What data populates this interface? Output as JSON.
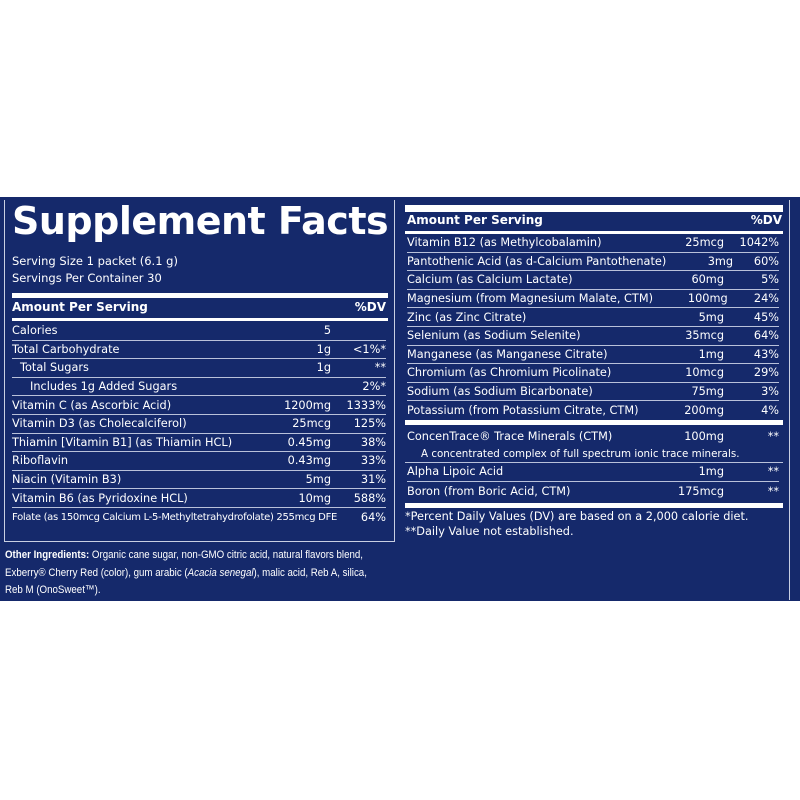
{
  "title": "Supplement Facts",
  "serving_size": "Serving Size 1 packet (6.1 g)",
  "servings_per_container": "Servings Per Container 30",
  "left": {
    "header_amount": "Amount Per Serving",
    "header_dv": "%DV",
    "rows": [
      {
        "name": "Calories",
        "amount": "5",
        "dv": ""
      },
      {
        "name": "Total Carbohydrate",
        "amount": "1g",
        "dv": "<1%*"
      },
      {
        "name": "Total Sugars",
        "amount": "1g",
        "dv": "**"
      },
      {
        "name": "Includes 1g Added Sugars",
        "amount": "",
        "dv": "2%*"
      },
      {
        "name": "Vitamin C (as Ascorbic Acid)",
        "amount": "1200mg",
        "dv": "1333%"
      },
      {
        "name": "Vitamin D3 (as Cholecalciferol)",
        "amount": "25mcg",
        "dv": "125%"
      },
      {
        "name": "Thiamin [Vitamin B1] (as Thiamin HCL)",
        "amount": "0.45mg",
        "dv": "38%"
      },
      {
        "name": "Riboflavin",
        "amount": "0.43mg",
        "dv": "33%"
      },
      {
        "name": "Niacin (Vitamin B3)",
        "amount": "5mg",
        "dv": "31%"
      },
      {
        "name": "Vitamin B6 (as Pyridoxine HCL)",
        "amount": "10mg",
        "dv": "588%"
      },
      {
        "name": "Folate (as 150mcg Calcium L-5-Methyltetrahydrofolate) 255mcg DFE",
        "amount": "",
        "dv": "64%"
      }
    ]
  },
  "right": {
    "header_amount": "Amount Per Serving",
    "header_dv": "%DV",
    "rows": [
      {
        "name": "Vitamin B12 (as Methylcobalamin)",
        "amount": "25mcg",
        "dv": "1042%"
      },
      {
        "name": "Pantothenic Acid (as d-Calcium Pantothenate)",
        "amount": "3mg",
        "dv": "60%"
      },
      {
        "name": "Calcium (as Calcium Lactate)",
        "amount": "60mg",
        "dv": "5%"
      },
      {
        "name": "Magnesium (from Magnesium Malate, CTM)",
        "amount": "100mg",
        "dv": "24%"
      },
      {
        "name": "Zinc (as Zinc Citrate)",
        "amount": "5mg",
        "dv": "45%"
      },
      {
        "name": "Selenium (as Sodium Selenite)",
        "amount": "35mcg",
        "dv": "64%"
      },
      {
        "name": "Manganese (as Manganese Citrate)",
        "amount": "1mg",
        "dv": "43%"
      },
      {
        "name": "Chromium (as Chromium Picolinate)",
        "amount": "10mcg",
        "dv": "29%"
      },
      {
        "name": "Sodium (as Sodium Bicarbonate)",
        "amount": "75mg",
        "dv": "3%"
      },
      {
        "name": "Potassium (from Potassium Citrate, CTM)",
        "amount": "200mg",
        "dv": "4%"
      }
    ],
    "ctm": {
      "name": "ConcenTrace® Trace Minerals (CTM)",
      "amount": "100mg",
      "dv": "**",
      "note": "A concentrated complex of full spectrum ionic trace minerals."
    },
    "rows2": [
      {
        "name": "Alpha Lipoic Acid",
        "amount": "1mg",
        "dv": "**"
      },
      {
        "name": "Boron (from Boric Acid, CTM)",
        "amount": "175mcg",
        "dv": "**"
      }
    ],
    "footnote1": "*Percent Daily Values (DV) are based on a 2,000 calorie diet.",
    "footnote2": "**Daily Value not established."
  },
  "other_ingredients": {
    "label": "Other Ingredients:",
    "text1": " Organic cane sugar, non-GMO citric acid, natural flavors blend, Exberry® Cherry Red (color), gum arabic (",
    "italic": "Acacia senegal",
    "text2": "), malic acid, Reb A, silica, Reb M (OnoSweet™)."
  },
  "colors": {
    "background": "#15296b",
    "text": "#ffffff"
  }
}
